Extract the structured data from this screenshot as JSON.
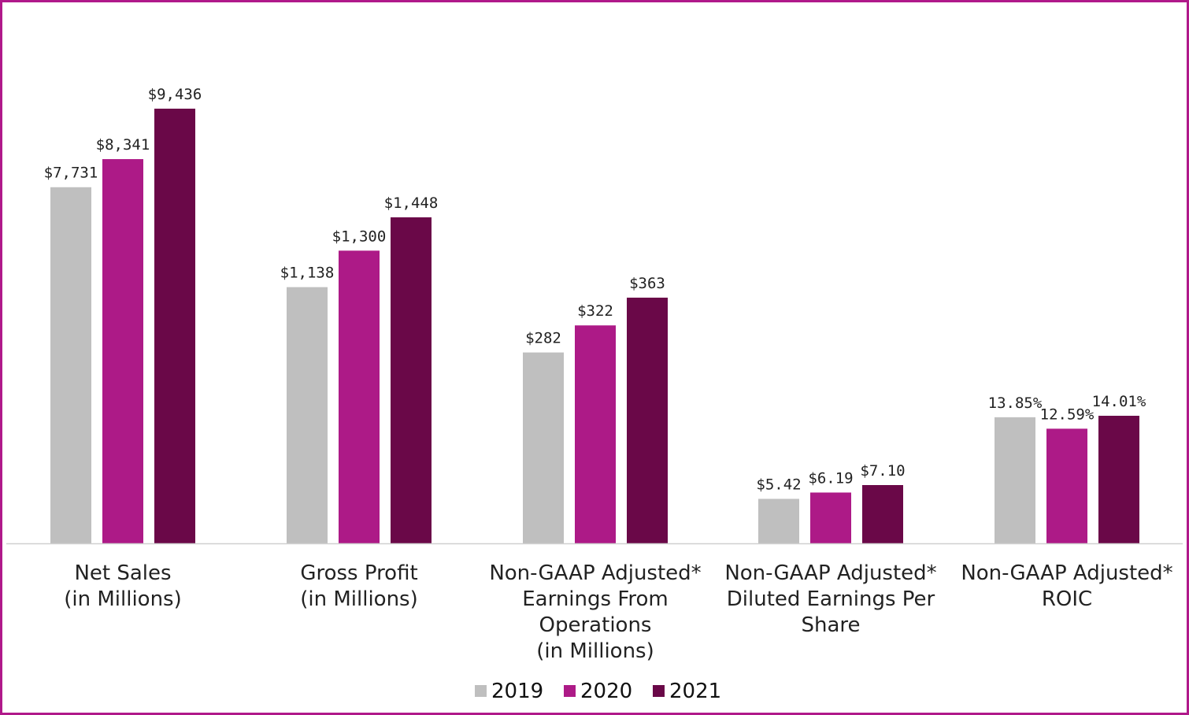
{
  "chart_data": {
    "type": "bar",
    "title": "",
    "xlabel": "",
    "ylabel": "",
    "grid": false,
    "legend_position": "bottom-center",
    "categories": [
      [
        "Net Sales",
        "(in Millions)"
      ],
      [
        "Gross Profit",
        "(in Millions)"
      ],
      [
        "Non-GAAP Adjusted*",
        "Earnings From",
        "Operations",
        "(in Millions)"
      ],
      [
        "Non-GAAP Adjusted*",
        "Diluted Earnings Per",
        "Share"
      ],
      [
        "Non-GAAP Adjusted*",
        "ROIC"
      ]
    ],
    "series": [
      {
        "name": "2019",
        "color": "#bfbfbf",
        "labels": [
          "$7,731",
          "$1,138",
          "$282",
          "$5.42",
          "13.85%"
        ],
        "values": [
          7731,
          1138,
          282,
          5.42,
          13.85
        ]
      },
      {
        "name": "2020",
        "color": "#ad1a87",
        "labels": [
          "$8,341",
          "$1,300",
          "$322",
          "$6.19",
          "12.59%"
        ],
        "values": [
          8341,
          1300,
          322,
          6.19,
          12.59
        ]
      },
      {
        "name": "2021",
        "color": "#6a0848",
        "labels": [
          "$9,436",
          "$1,448",
          "$363",
          "$7.10",
          "14.01%"
        ],
        "values": [
          9436,
          1448,
          363,
          7.1,
          14.01
        ]
      }
    ],
    "note": "Each category is scaled independently (different units)."
  }
}
